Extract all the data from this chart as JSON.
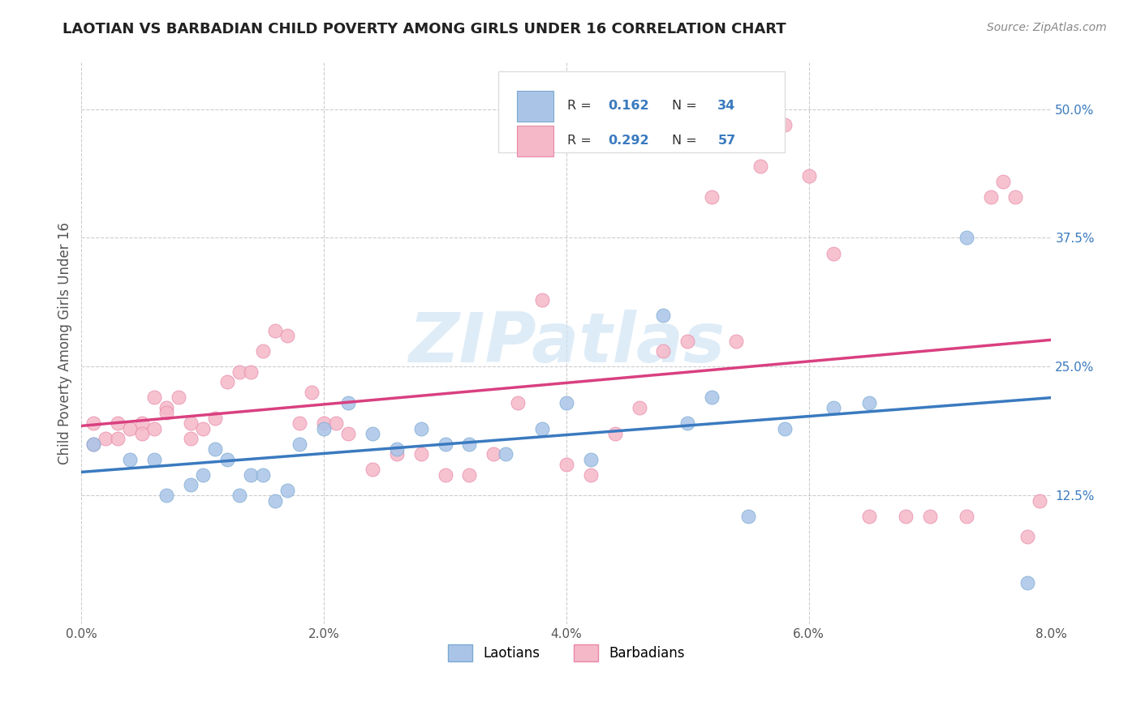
{
  "title": "LAOTIAN VS BARBADIAN CHILD POVERTY AMONG GIRLS UNDER 16 CORRELATION CHART",
  "source": "Source: ZipAtlas.com",
  "ylabel": "Child Poverty Among Girls Under 16",
  "ytick_vals": [
    0.125,
    0.25,
    0.375,
    0.5
  ],
  "ytick_labels": [
    "12.5%",
    "25.0%",
    "37.5%",
    "50.0%"
  ],
  "xtick_vals": [
    0.0,
    0.02,
    0.04,
    0.06,
    0.08
  ],
  "xtick_labels": [
    "0.0%",
    "2.0%",
    "4.0%",
    "6.0%",
    "8.0%"
  ],
  "xmin": 0.0,
  "xmax": 0.08,
  "ymin": 0.0,
  "ymax": 0.545,
  "blue_scatter_color": "#aac4e8",
  "blue_edge_color": "#7aaad0",
  "pink_scatter_color": "#f5b8c8",
  "pink_edge_color": "#e888a8",
  "blue_line_color": "#3a7abf",
  "pink_line_color": "#d94080",
  "r_laotian": "0.162",
  "n_laotian": "34",
  "r_barbadian": "0.292",
  "n_barbadian": "57",
  "text_color": "#3a7abf",
  "label_color": "#555555",
  "grid_color": "#cccccc",
  "watermark_color": "#d0e4f5",
  "laotian_x": [
    0.001,
    0.004,
    0.006,
    0.007,
    0.009,
    0.01,
    0.011,
    0.012,
    0.013,
    0.014,
    0.015,
    0.016,
    0.017,
    0.018,
    0.02,
    0.022,
    0.024,
    0.026,
    0.028,
    0.03,
    0.032,
    0.035,
    0.038,
    0.04,
    0.042,
    0.048,
    0.05,
    0.052,
    0.055,
    0.058,
    0.062,
    0.065,
    0.073,
    0.078
  ],
  "laotian_y": [
    0.175,
    0.16,
    0.16,
    0.125,
    0.135,
    0.145,
    0.17,
    0.16,
    0.125,
    0.145,
    0.145,
    0.12,
    0.13,
    0.175,
    0.19,
    0.215,
    0.185,
    0.17,
    0.19,
    0.175,
    0.175,
    0.165,
    0.19,
    0.215,
    0.16,
    0.3,
    0.195,
    0.22,
    0.105,
    0.19,
    0.21,
    0.215,
    0.375,
    0.04
  ],
  "barbadian_x": [
    0.001,
    0.001,
    0.002,
    0.003,
    0.003,
    0.004,
    0.005,
    0.005,
    0.006,
    0.006,
    0.007,
    0.007,
    0.008,
    0.009,
    0.009,
    0.01,
    0.011,
    0.012,
    0.013,
    0.014,
    0.015,
    0.016,
    0.017,
    0.018,
    0.019,
    0.02,
    0.021,
    0.022,
    0.024,
    0.026,
    0.028,
    0.03,
    0.032,
    0.034,
    0.036,
    0.038,
    0.04,
    0.042,
    0.044,
    0.046,
    0.048,
    0.05,
    0.052,
    0.054,
    0.056,
    0.058,
    0.06,
    0.062,
    0.065,
    0.068,
    0.07,
    0.073,
    0.075,
    0.076,
    0.077,
    0.078,
    0.079
  ],
  "barbadian_y": [
    0.195,
    0.175,
    0.18,
    0.195,
    0.18,
    0.19,
    0.195,
    0.185,
    0.22,
    0.19,
    0.21,
    0.205,
    0.22,
    0.195,
    0.18,
    0.19,
    0.2,
    0.235,
    0.245,
    0.245,
    0.265,
    0.285,
    0.28,
    0.195,
    0.225,
    0.195,
    0.195,
    0.185,
    0.15,
    0.165,
    0.165,
    0.145,
    0.145,
    0.165,
    0.215,
    0.315,
    0.155,
    0.145,
    0.185,
    0.21,
    0.265,
    0.275,
    0.415,
    0.275,
    0.445,
    0.485,
    0.435,
    0.36,
    0.105,
    0.105,
    0.105,
    0.105,
    0.415,
    0.43,
    0.415,
    0.085,
    0.12
  ]
}
